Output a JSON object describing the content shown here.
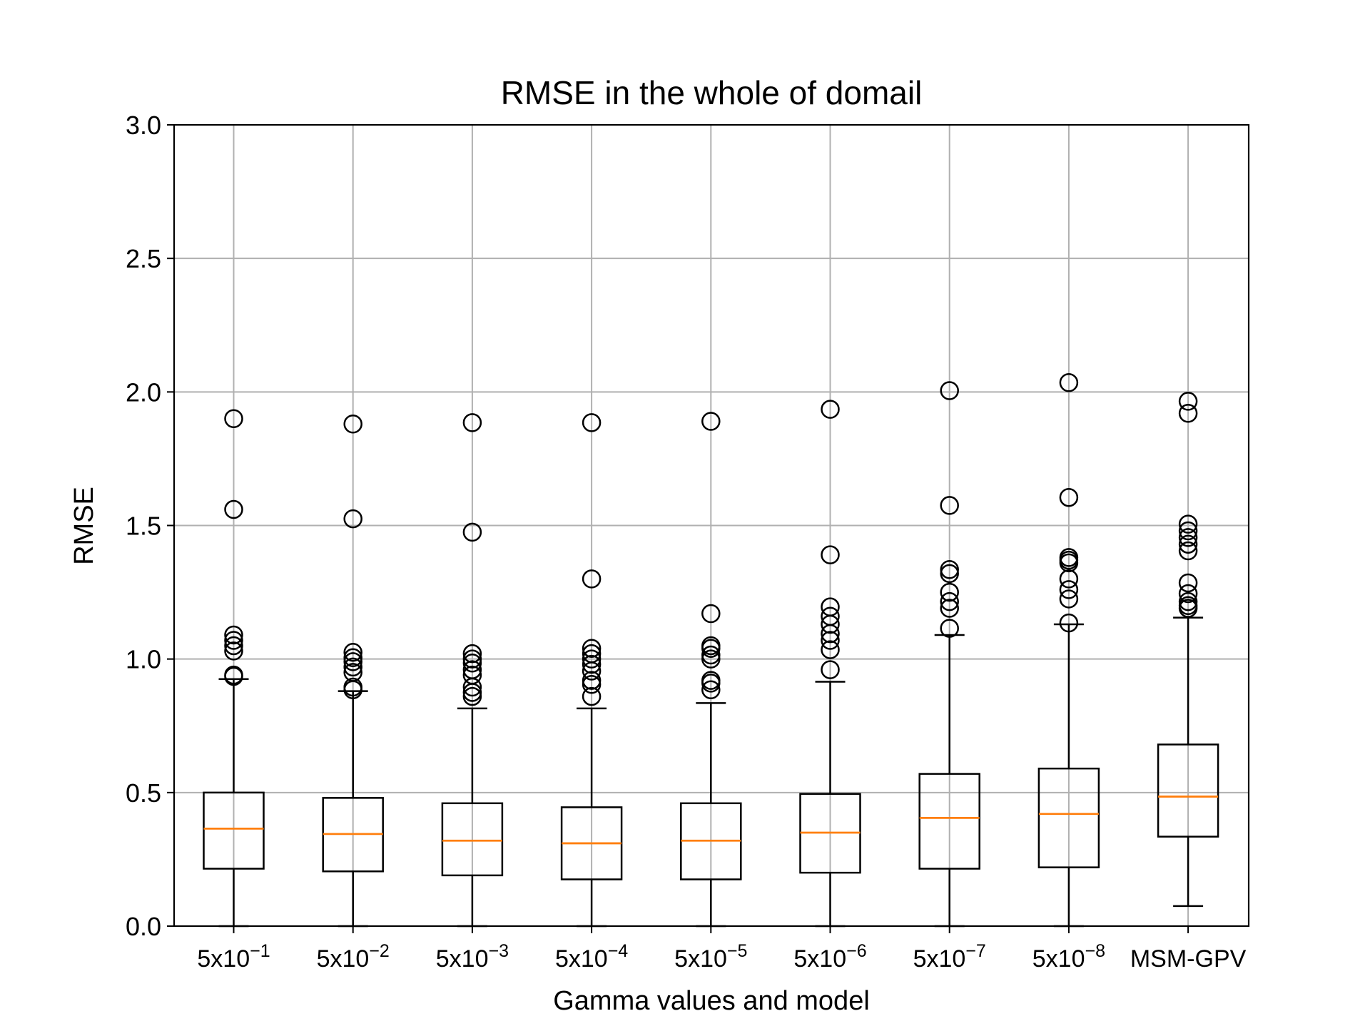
{
  "chart_data": {
    "type": "box",
    "title": "RMSE in the whole of domail",
    "xlabel": "Gamma values and model",
    "ylabel": "RMSE",
    "ylim": [
      0,
      3.0
    ],
    "yticks": [
      0.0,
      0.5,
      1.0,
      1.5,
      2.0,
      2.5,
      3.0
    ],
    "ytick_labels": [
      "0.0",
      "0.5",
      "1.0",
      "1.5",
      "2.0",
      "2.5",
      "3.0"
    ],
    "grid": true,
    "categories": [
      {
        "base": "5x10",
        "exp": "−1"
      },
      {
        "base": "5x10",
        "exp": "−2"
      },
      {
        "base": "5x10",
        "exp": "−3"
      },
      {
        "base": "5x10",
        "exp": "−4"
      },
      {
        "base": "5x10",
        "exp": "−5"
      },
      {
        "base": "5x10",
        "exp": "−6"
      },
      {
        "base": "5x10",
        "exp": "−7"
      },
      {
        "base": "5x10",
        "exp": "−8"
      },
      {
        "base": "MSM-GPV",
        "exp": ""
      }
    ],
    "boxes": [
      {
        "whisker_low": 0.0,
        "q1": 0.215,
        "median": 0.365,
        "q3": 0.5,
        "whisker_high": 0.925,
        "outliers": [
          1.9,
          1.56,
          1.09,
          1.07,
          1.05,
          1.03,
          0.94,
          0.935
        ]
      },
      {
        "whisker_low": 0.0,
        "q1": 0.205,
        "median": 0.345,
        "q3": 0.48,
        "whisker_high": 0.88,
        "outliers": [
          1.88,
          1.525,
          1.025,
          1.005,
          0.99,
          0.97,
          0.95,
          0.895,
          0.885
        ]
      },
      {
        "whisker_low": 0.0,
        "q1": 0.19,
        "median": 0.32,
        "q3": 0.46,
        "whisker_high": 0.815,
        "outliers": [
          1.885,
          1.475,
          1.02,
          1.0,
          0.985,
          0.96,
          0.94,
          0.895,
          0.875,
          0.86
        ]
      },
      {
        "whisker_low": 0.0,
        "q1": 0.175,
        "median": 0.31,
        "q3": 0.445,
        "whisker_high": 0.815,
        "outliers": [
          1.885,
          1.3,
          1.04,
          1.02,
          1.0,
          0.98,
          0.955,
          0.92,
          0.905,
          0.86
        ]
      },
      {
        "whisker_low": 0.0,
        "q1": 0.175,
        "median": 0.32,
        "q3": 0.46,
        "whisker_high": 0.835,
        "outliers": [
          1.89,
          1.17,
          1.05,
          1.04,
          1.015,
          1.0,
          0.92,
          0.91,
          0.885
        ]
      },
      {
        "whisker_low": 0.0,
        "q1": 0.2,
        "median": 0.35,
        "q3": 0.495,
        "whisker_high": 0.915,
        "outliers": [
          1.935,
          1.39,
          1.195,
          1.16,
          1.13,
          1.095,
          1.07,
          1.035,
          0.96
        ]
      },
      {
        "whisker_low": 0.0,
        "q1": 0.215,
        "median": 0.405,
        "q3": 0.57,
        "whisker_high": 1.09,
        "outliers": [
          2.005,
          1.575,
          1.335,
          1.32,
          1.25,
          1.215,
          1.19,
          1.115
        ]
      },
      {
        "whisker_low": 0.0,
        "q1": 0.22,
        "median": 0.42,
        "q3": 0.59,
        "whisker_high": 1.13,
        "outliers": [
          2.035,
          1.605,
          1.38,
          1.37,
          1.36,
          1.3,
          1.26,
          1.225,
          1.135
        ]
      },
      {
        "whisker_low": 0.075,
        "q1": 0.335,
        "median": 0.485,
        "q3": 0.68,
        "whisker_high": 1.155,
        "outliers": [
          1.965,
          1.92,
          1.505,
          1.48,
          1.455,
          1.43,
          1.405,
          1.285,
          1.245,
          1.215,
          1.2,
          1.19
        ]
      }
    ]
  },
  "colors": {
    "axis": "#000000",
    "grid": "#b0b0b0",
    "box": "#000000",
    "median": "#ff7f0e",
    "outlier": "#000000"
  }
}
